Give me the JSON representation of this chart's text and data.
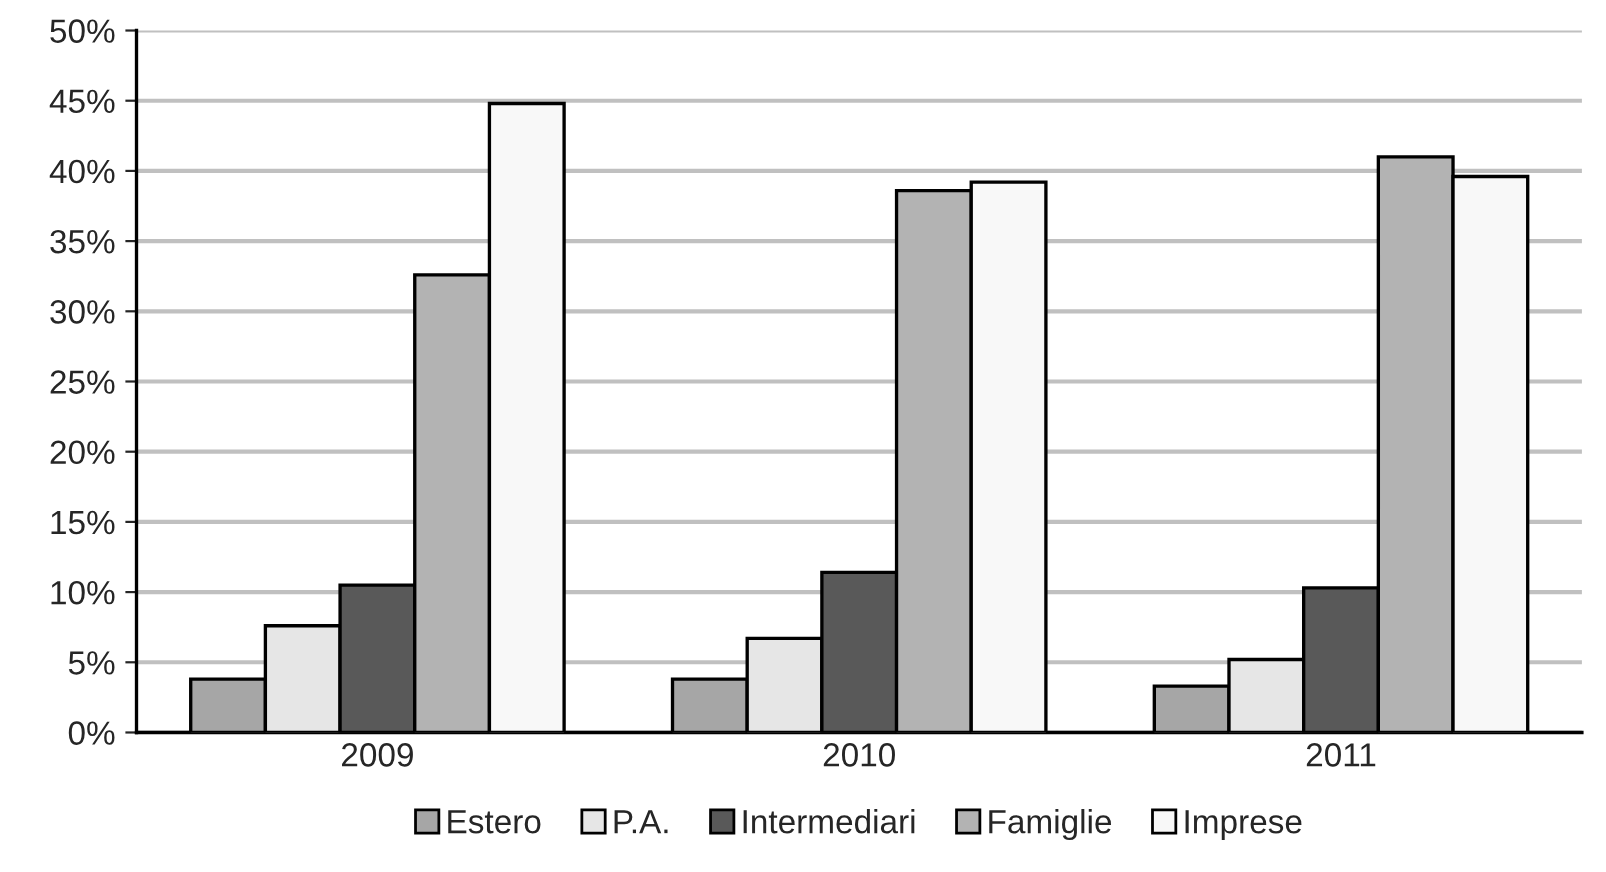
{
  "chart_data": {
    "type": "bar",
    "categories": [
      "2009",
      "2010",
      "2011"
    ],
    "series": [
      {
        "name": "Estero",
        "color": "#a6a6a6",
        "values": [
          3.8,
          3.8,
          3.3
        ]
      },
      {
        "name": "P.A.",
        "color": "#e6e6e6",
        "values": [
          7.6,
          6.7,
          5.2
        ]
      },
      {
        "name": "Intermediari",
        "color": "#595959",
        "values": [
          10.5,
          11.4,
          10.3
        ]
      },
      {
        "name": "Famiglie",
        "color": "#b3b3b3",
        "values": [
          32.6,
          38.6,
          41.0
        ]
      },
      {
        "name": "Imprese",
        "color": "#f8f8f8",
        "values": [
          44.8,
          39.2,
          39.6
        ]
      }
    ],
    "ylim": [
      0,
      50
    ],
    "yticks": [
      {
        "value": 0,
        "label": "0%"
      },
      {
        "value": 5,
        "label": "5%"
      },
      {
        "value": 10,
        "label": "10%"
      },
      {
        "value": 15,
        "label": "15%"
      },
      {
        "value": 20,
        "label": "20%"
      },
      {
        "value": 25,
        "label": "25%"
      },
      {
        "value": 30,
        "label": "30%"
      },
      {
        "value": 35,
        "label": "35%"
      },
      {
        "value": 40,
        "label": "40%"
      },
      {
        "value": 45,
        "label": "45%"
      },
      {
        "value": 50,
        "label": "50%"
      }
    ],
    "grid": "y",
    "legend": "bottom"
  }
}
